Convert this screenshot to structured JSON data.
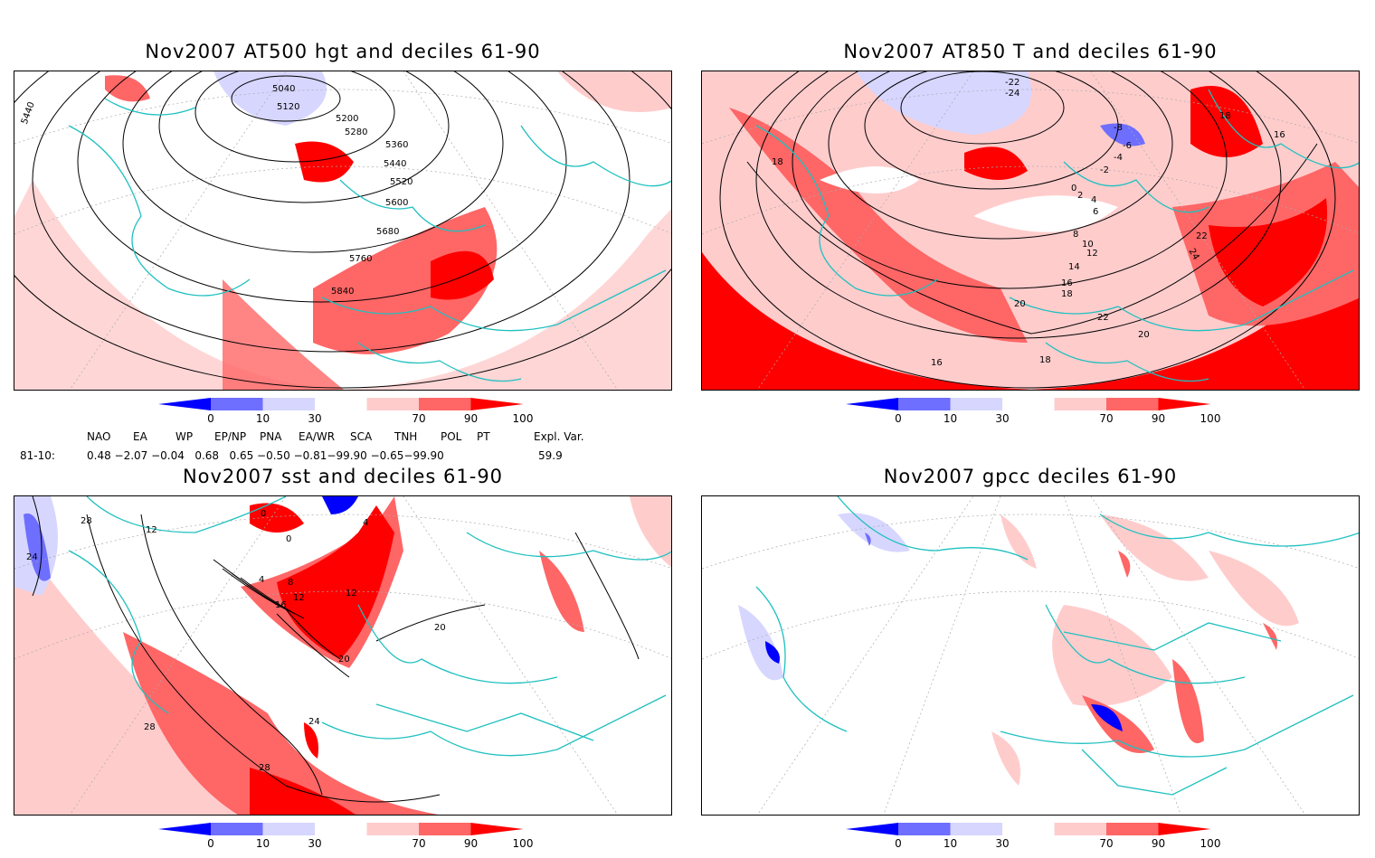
{
  "panels": [
    {
      "title": "Nov2007 AT500 hgt and deciles 61-90",
      "contour_labels": [
        "5040",
        "5120",
        "5200",
        "5280",
        "5360",
        "5440",
        "5520",
        "5600",
        "5680",
        "5760",
        "5840",
        "5440"
      ]
    },
    {
      "title": "Nov2007 AT850 T and deciles 61-90",
      "contour_labels": [
        "-22",
        "-24",
        "-8",
        "-6",
        "-4",
        "-2",
        "0",
        "2",
        "4",
        "6",
        "8",
        "10",
        "12",
        "14",
        "16",
        "18",
        "20",
        "22",
        "24",
        "18",
        "16",
        "18",
        "20",
        "22",
        "16",
        "18"
      ]
    },
    {
      "title": "Nov2007 sst and deciles 61-90",
      "contour_labels": [
        "28",
        "24",
        "12",
        "0",
        "0",
        "4",
        "8",
        "12",
        "16",
        "20",
        "24",
        "28",
        "28",
        "20",
        "12",
        "4"
      ]
    },
    {
      "title": "Nov2007 gpcc deciles 61-90",
      "contour_labels": []
    }
  ],
  "colorbar": {
    "ticks": [
      "0",
      "10",
      "30",
      "70",
      "90",
      "100"
    ],
    "colors": [
      "#0000ff",
      "#6e6eff",
      "#d6d6ff",
      "#ffffff",
      "#ffcccc",
      "#ff6666",
      "#ff0000"
    ]
  },
  "indices": {
    "headers": [
      "NAO",
      "EA",
      "WP",
      "EP/NP",
      "PNA",
      "EA/WR",
      "SCA",
      "TNH",
      "POL",
      "PT",
      "Expl. Var."
    ],
    "row_label": "81-10:",
    "values_text": "0.48 −2.07 −0.04   0.68   0.65 −0.50 −0.81−99.90 −0.65−99.90",
    "expl_var": "59.9"
  }
}
